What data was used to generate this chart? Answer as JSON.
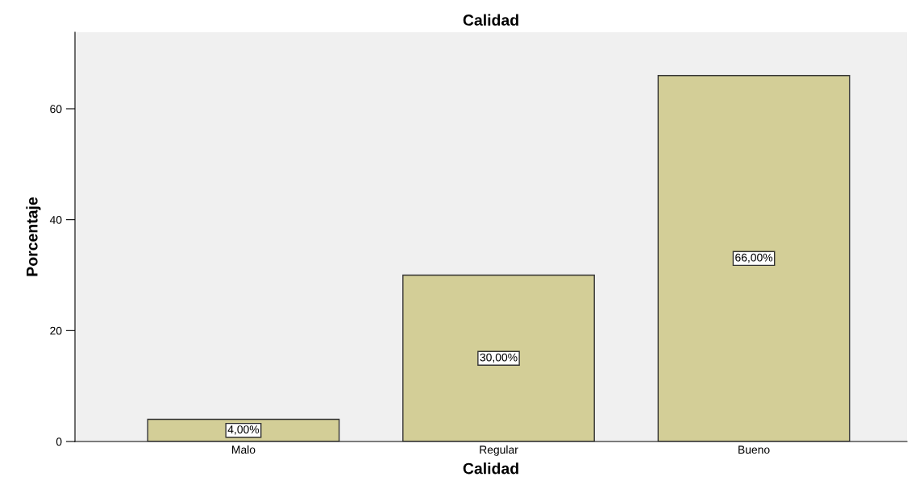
{
  "chart_data": {
    "type": "bar",
    "title": "Calidad",
    "xlabel": "Calidad",
    "ylabel": "Porcentaje",
    "categories": [
      "Malo",
      "Regular",
      "Bueno"
    ],
    "values": [
      4,
      30,
      66
    ],
    "value_labels": [
      "4,00%",
      "30,00%",
      "66,00%"
    ],
    "color": "#d3ce97",
    "ylim": [
      0,
      73.8
    ],
    "yticks": [
      0,
      20,
      40,
      60
    ],
    "grid": false,
    "legend": false
  }
}
